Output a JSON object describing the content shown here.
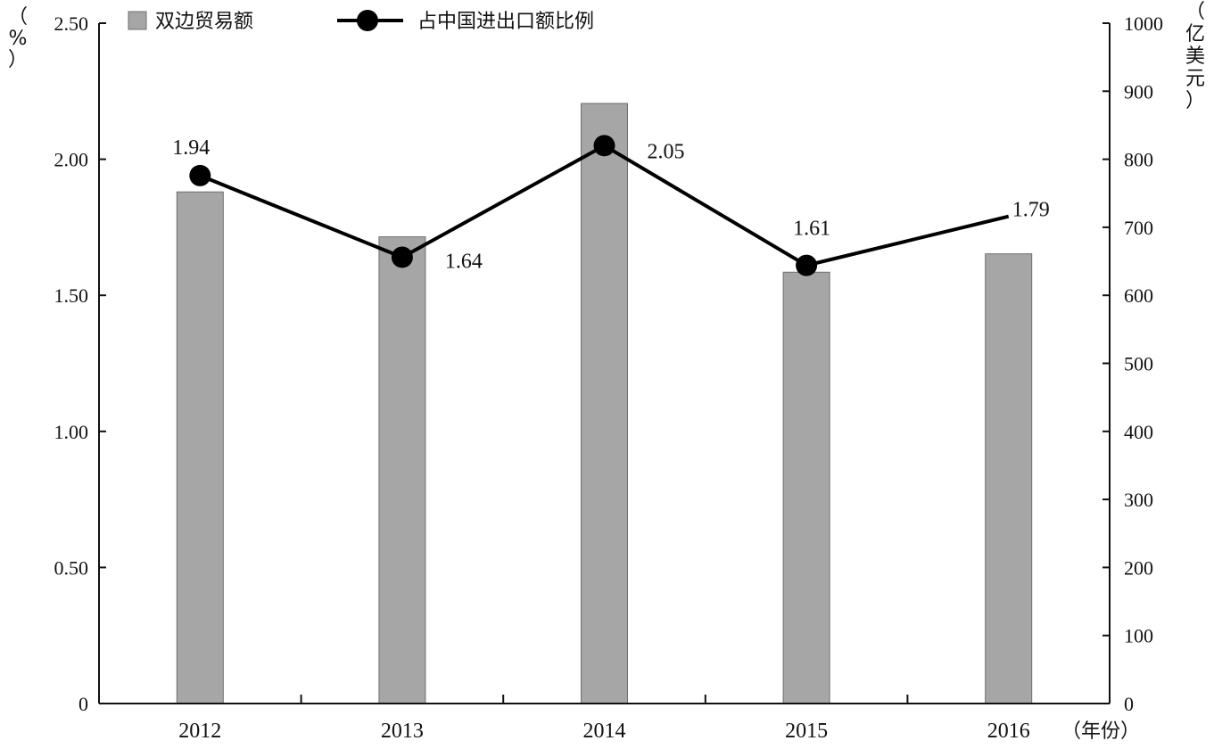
{
  "chart_data": {
    "type": "bar+line",
    "categories": [
      "2012",
      "2013",
      "2014",
      "2015",
      "2016"
    ],
    "series": [
      {
        "name": "双边贸易额",
        "type": "bar",
        "axis": "right",
        "values": [
          752,
          686,
          882,
          634,
          661
        ],
        "color": "#a6a6a6"
      },
      {
        "name": "占中国进出口额比例",
        "type": "line",
        "axis": "left",
        "values": [
          1.94,
          1.64,
          2.05,
          1.61,
          1.79
        ],
        "data_labels": [
          "1.94",
          "1.64",
          "2.05",
          "1.61",
          "1.79"
        ],
        "markers": [
          true,
          true,
          true,
          true,
          false
        ],
        "color": "#000000"
      }
    ],
    "left_axis": {
      "unit": "%",
      "ylim": [
        0,
        2.5
      ],
      "ticks": [
        "0",
        "0.50",
        "1.00",
        "1.50",
        "2.00",
        "2.50"
      ]
    },
    "right_axis": {
      "unit": "亿美元",
      "ylim": [
        0,
        1000
      ],
      "ticks": [
        "0",
        "100",
        "200",
        "300",
        "400",
        "500",
        "600",
        "700",
        "800",
        "900",
        "1000"
      ]
    },
    "x_unit": "（年份）",
    "legend_position": "top-left",
    "grid": false
  }
}
